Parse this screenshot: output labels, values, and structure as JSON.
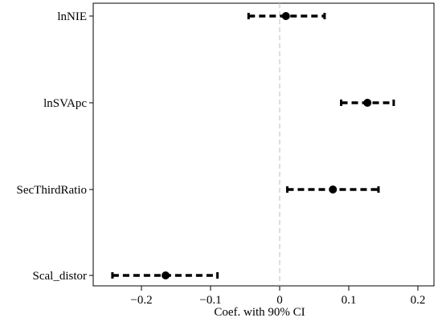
{
  "chart_data": {
    "type": "scatter",
    "subtype": "coefficient-plot",
    "title": "",
    "xlabel": "Coef. with 90% CI",
    "ylabel": "",
    "xlim": [
      -0.25,
      0.22
    ],
    "xticks": [
      -0.2,
      -0.1,
      0,
      0.1,
      0.2
    ],
    "xtick_labels": [
      "−0.2",
      "−0.1",
      "0",
      "0.1",
      "0.2"
    ],
    "grid": false,
    "legend": "none",
    "reference_line": {
      "x": 0,
      "style": "dashed",
      "color": "#c8c8c8"
    },
    "series": [
      {
        "variables": [
          {
            "label": "lnNIE",
            "estimate": 0.009,
            "ci_low": -0.045,
            "ci_high": 0.065
          },
          {
            "label": "lnSVApc",
            "estimate": 0.127,
            "ci_low": 0.089,
            "ci_high": 0.165
          },
          {
            "label": "SecThirdRatio",
            "estimate": 0.077,
            "ci_low": 0.011,
            "ci_high": 0.143
          },
          {
            "label": "Scal_distor",
            "estimate": -0.165,
            "ci_low": -0.242,
            "ci_high": -0.09
          }
        ]
      }
    ],
    "colors": {
      "marker": "#000000",
      "ci_line": "#000000",
      "frame": "#000000",
      "reference": "#c8c8c8"
    }
  }
}
